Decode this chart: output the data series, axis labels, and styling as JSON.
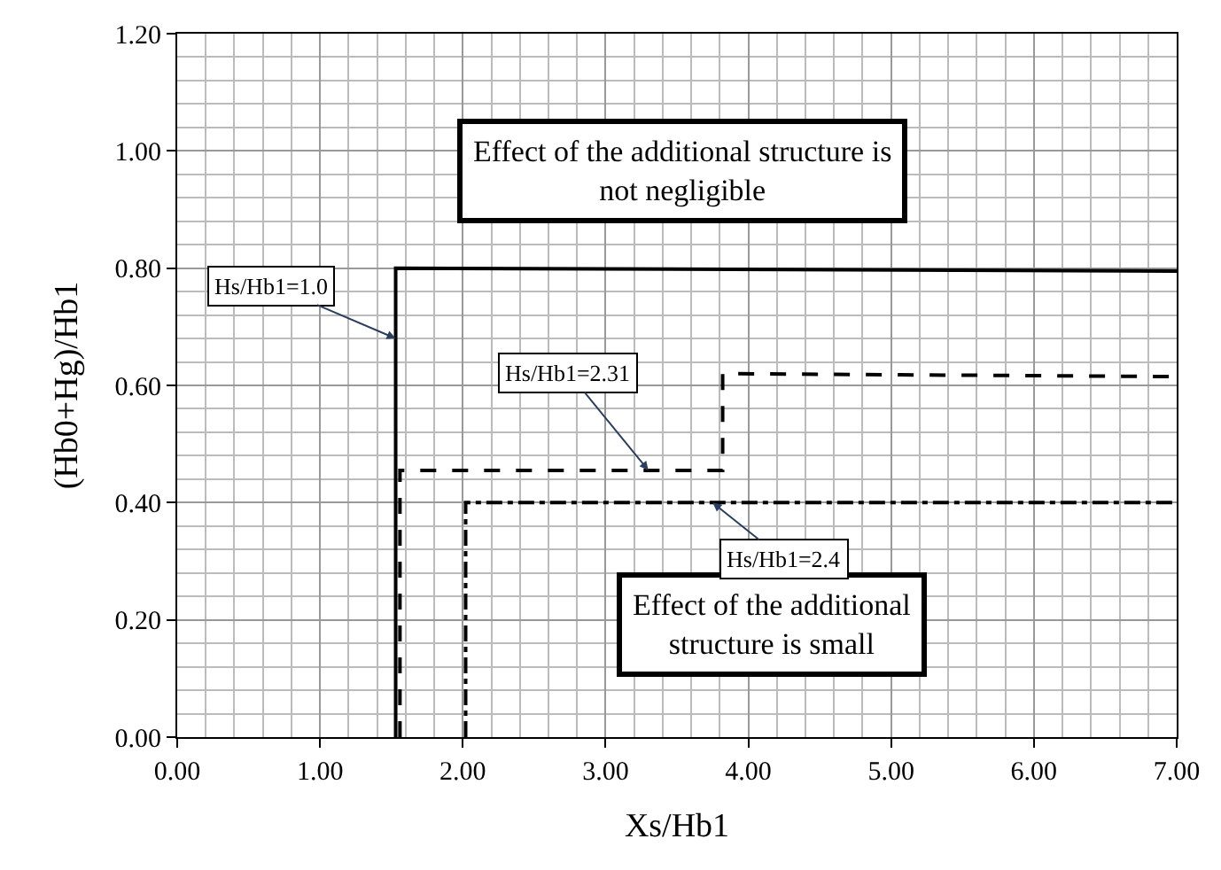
{
  "chart_data": {
    "type": "line",
    "xlabel": "Xs/Hb1",
    "ylabel": "(Hb0+Hg)/Hb1",
    "xlim": [
      0,
      7
    ],
    "ylim": [
      0,
      1.2
    ],
    "xticks": [
      {
        "value": 0,
        "label": "0.00"
      },
      {
        "value": 1,
        "label": "1.00"
      },
      {
        "value": 2,
        "label": "2.00"
      },
      {
        "value": 3,
        "label": "3.00"
      },
      {
        "value": 4,
        "label": "4.00"
      },
      {
        "value": 5,
        "label": "5.00"
      },
      {
        "value": 6,
        "label": "6.00"
      },
      {
        "value": 7,
        "label": "7.00"
      }
    ],
    "yticks": [
      {
        "value": 0,
        "label": "0.00"
      },
      {
        "value": 0.2,
        "label": "0.20"
      },
      {
        "value": 0.4,
        "label": "0.40"
      },
      {
        "value": 0.6,
        "label": "0.60"
      },
      {
        "value": 0.8,
        "label": "0.80"
      },
      {
        "value": 1.0,
        "label": "1.00"
      },
      {
        "value": 1.2,
        "label": "1.20"
      }
    ],
    "grid": true,
    "series": [
      {
        "color": "#000000",
        "line_style": "solid",
        "x": [
          1.53,
          1.53,
          7
        ],
        "values": [
          0,
          0.8,
          0.795
        ]
      },
      {
        "color": "#000000",
        "line_style": "dashed",
        "x": [
          1.56,
          1.56,
          3.82,
          3.82,
          7
        ],
        "values": [
          0,
          0.455,
          0.455,
          0.62,
          0.615
        ]
      },
      {
        "color": "#000000",
        "line_style": "dashdot",
        "x": [
          2.02,
          2.02,
          7
        ],
        "values": [
          0,
          0.4,
          0.4
        ]
      }
    ],
    "annotations": [
      "Effect of the additional structure is\nnot negligible",
      "Effect of the additional\nstructure is small",
      {
        "text": "Hs/Hb1=1.0",
        "x": 1.53,
        "y": 0.68
      },
      {
        "text": "Hs/Hb1=2.31",
        "x": 3.3,
        "y": 0.455
      },
      {
        "text": "Hs/Hb1=2.4",
        "x": 3.75,
        "y": 0.4
      }
    ]
  }
}
